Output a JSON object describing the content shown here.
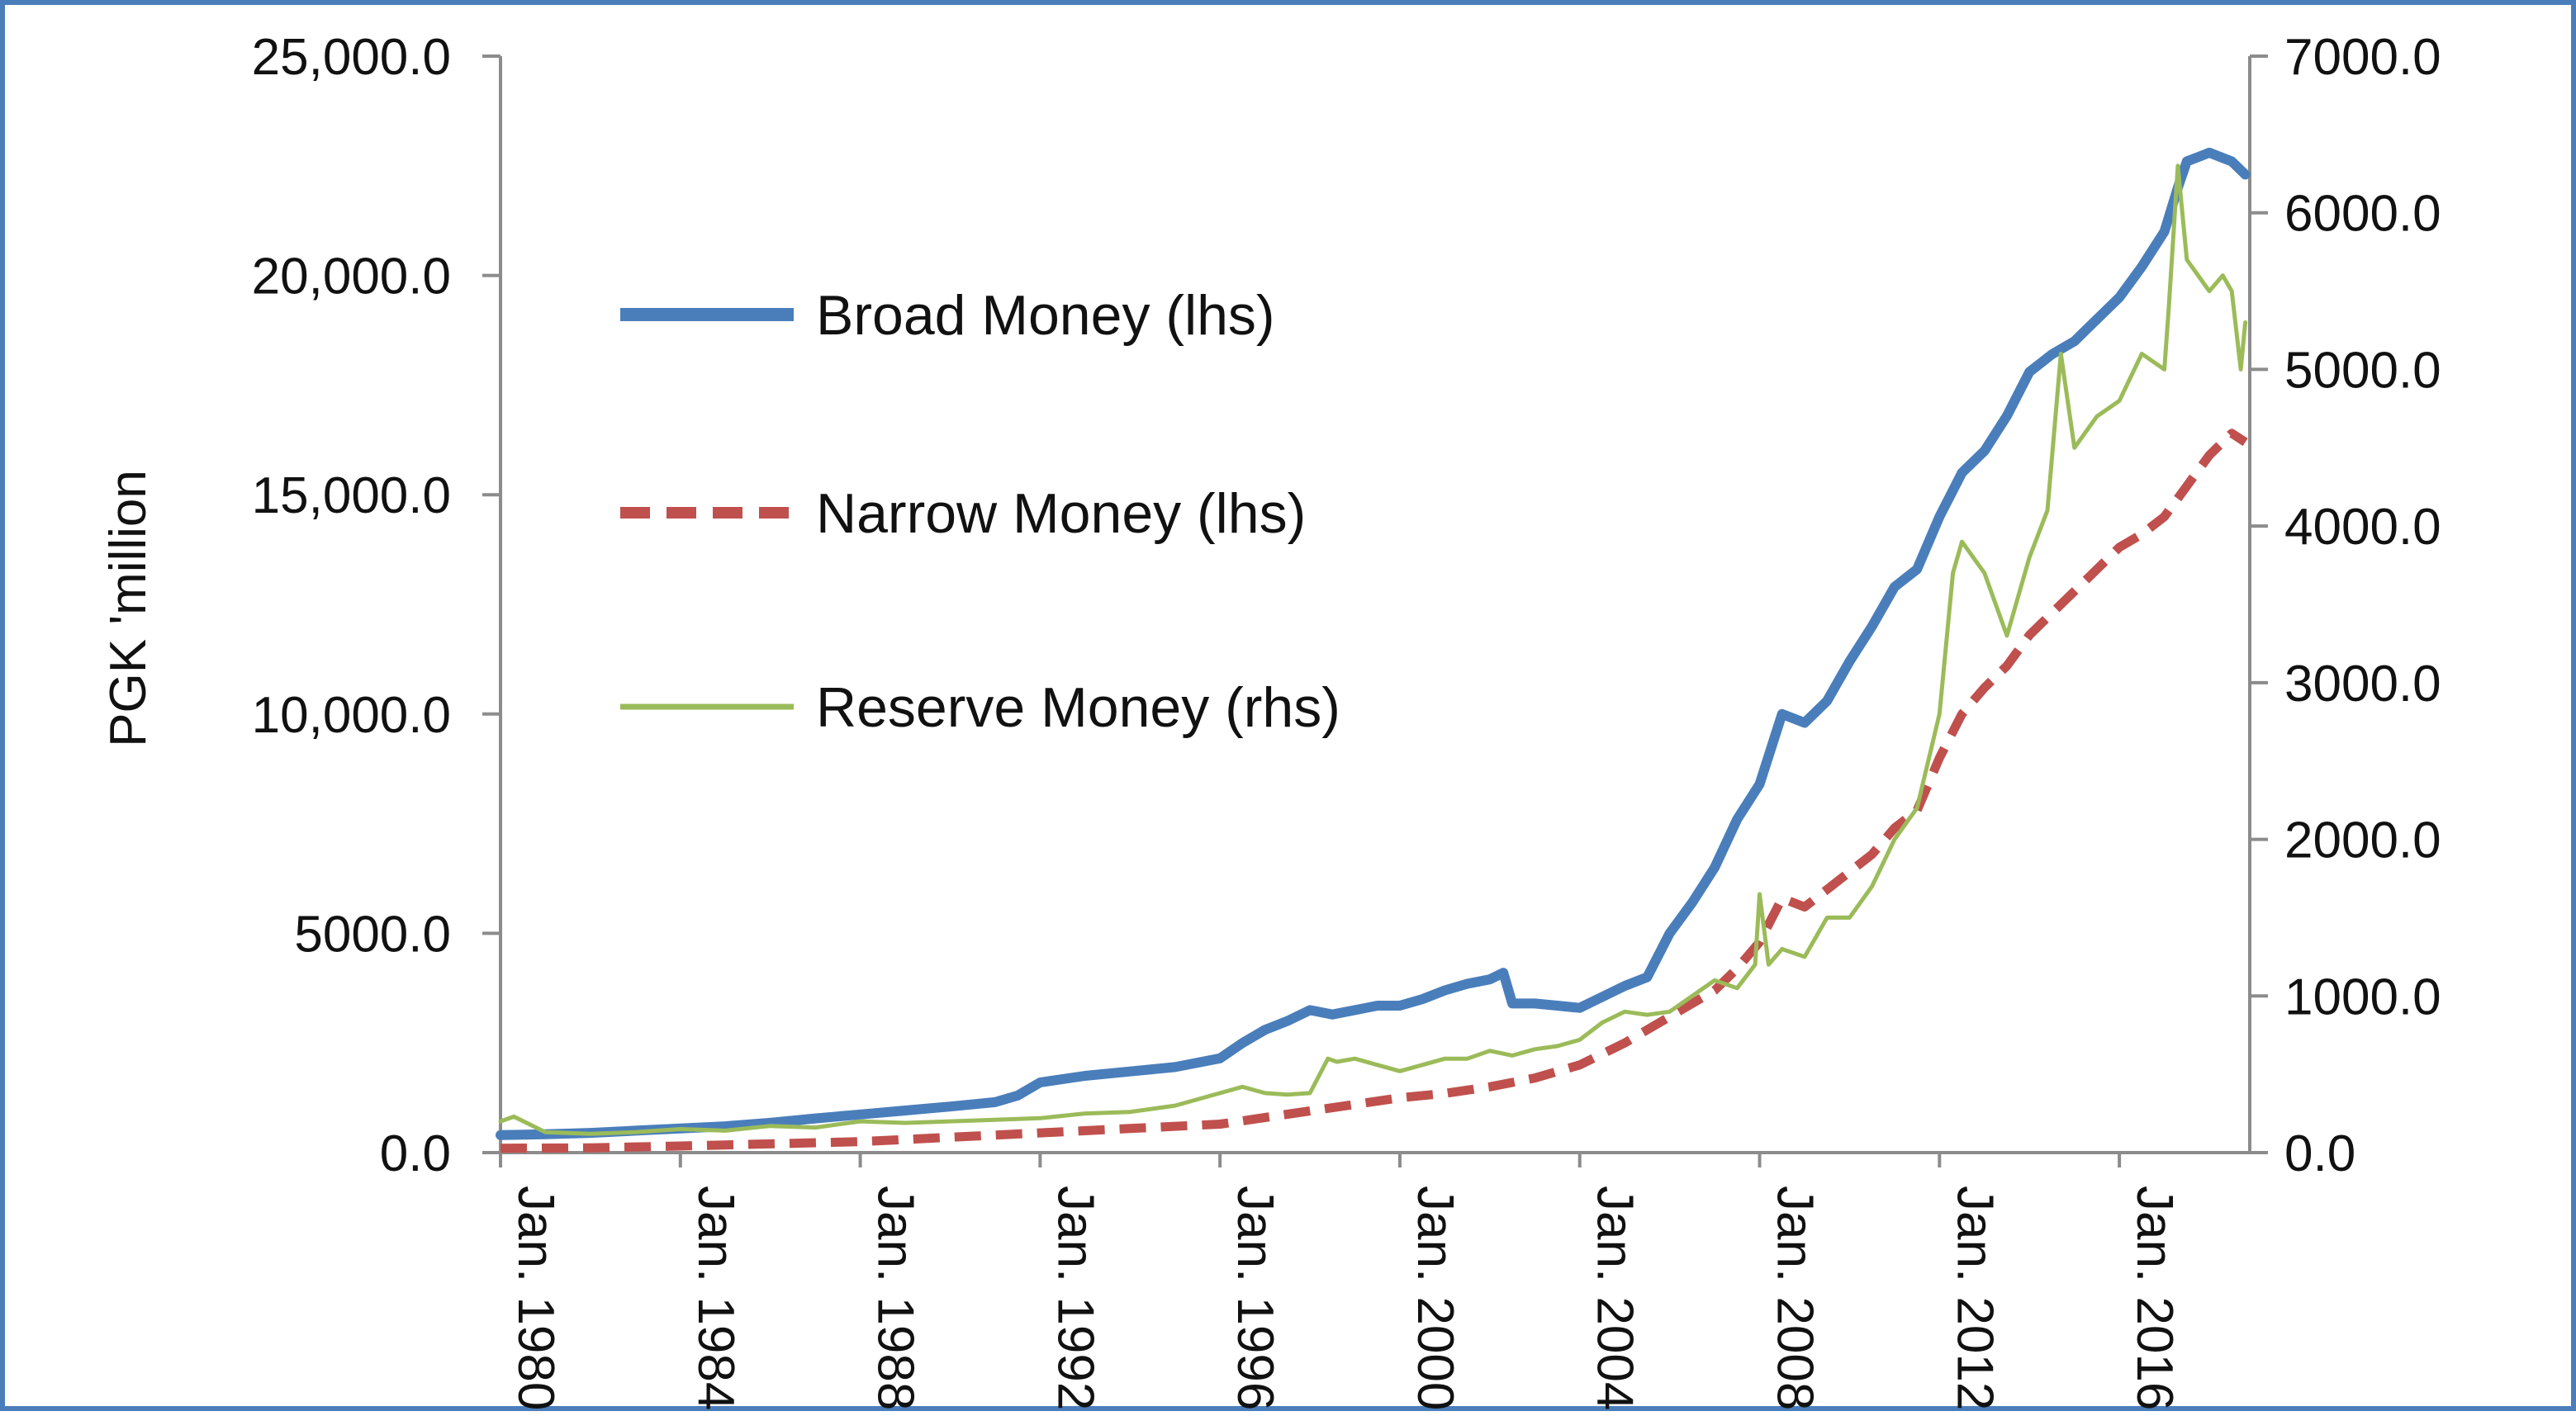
{
  "chart_data": {
    "type": "line",
    "title": "",
    "xlabel": "",
    "ylabel": "PGK 'million",
    "y2label": "",
    "x_range": [
      1980,
      2018.9
    ],
    "ylim": [
      0,
      25000
    ],
    "y2lim": [
      0,
      7000
    ],
    "x_ticks": [
      1980,
      1984,
      1988,
      1992,
      1996,
      2000,
      2004,
      2008,
      2012,
      2016
    ],
    "x_tick_labels": [
      "Jan. 1980",
      "Jan. 1984",
      "Jan. 1988",
      "Jan. 1992",
      "Jan. 1996",
      "Jan. 2000",
      "Jan. 2004",
      "Jan. 2008",
      "Jan. 2012",
      "Jan. 2016"
    ],
    "y_ticks": [
      0,
      5000,
      10000,
      15000,
      20000,
      25000
    ],
    "y_tick_labels": [
      "0.0",
      "5000.0",
      "10,000.0",
      "15,000.0",
      "20,000.0",
      "25,000.0"
    ],
    "y2_ticks": [
      0,
      1000,
      2000,
      3000,
      4000,
      5000,
      6000,
      7000
    ],
    "y2_tick_labels": [
      "0.0",
      "1000.0",
      "2000.0",
      "3000.0",
      "4000.0",
      "5000.0",
      "6000.0",
      "7000.0"
    ],
    "grid": false,
    "legend_position": "upper-left inside plot",
    "series": [
      {
        "name": "Broad Money (lhs)",
        "axis": "left",
        "color": "#4a7ebb",
        "style": "solid-thick",
        "x": [
          1980,
          1981,
          1982,
          1983,
          1984,
          1985,
          1986,
          1987,
          1988,
          1989,
          1990,
          1991,
          1991.5,
          1992,
          1993,
          1994,
          1995,
          1996,
          1996.5,
          1997,
          1997.5,
          1998,
          1998.5,
          1999,
          1999.5,
          2000,
          2000.5,
          2001,
          2001.5,
          2002,
          2002.3,
          2002.5,
          2003,
          2003.5,
          2004,
          2004.5,
          2005,
          2005.5,
          2006,
          2006.5,
          2007,
          2007.5,
          2008,
          2008.5,
          2009,
          2009.5,
          2010,
          2010.5,
          2011,
          2011.5,
          2012,
          2012.5,
          2013,
          2013.5,
          2014,
          2014.5,
          2015,
          2015.5,
          2016,
          2016.5,
          2017,
          2017.3,
          2017.5,
          2018,
          2018.5,
          2018.8
        ],
        "values": [
          400,
          420,
          450,
          500,
          550,
          600,
          680,
          780,
          870,
          960,
          1050,
          1150,
          1300,
          1600,
          1750,
          1850,
          1950,
          2150,
          2500,
          2800,
          3000,
          3250,
          3150,
          3250,
          3350,
          3350,
          3500,
          3700,
          3850,
          3950,
          4100,
          3400,
          3400,
          3350,
          3300,
          3550,
          3800,
          4000,
          5000,
          5700,
          6500,
          7600,
          8400,
          10000,
          9800,
          10300,
          11200,
          12000,
          12900,
          13300,
          14500,
          15500,
          16000,
          16800,
          17800,
          18200,
          18500,
          19000,
          19500,
          20200,
          21000,
          22000,
          22600,
          22800,
          22600,
          22300
        ]
      },
      {
        "name": "Narrow Money (lhs)",
        "axis": "left",
        "color": "#c0504d",
        "style": "dashed",
        "x": [
          1980,
          1982,
          1984,
          1986,
          1988,
          1990,
          1992,
          1994,
          1996,
          1997,
          1998,
          1999,
          2000,
          2001,
          2002,
          2003,
          2004,
          2005,
          2006,
          2007,
          2007.5,
          2008,
          2008.5,
          2009,
          2009.5,
          2010,
          2010.5,
          2011,
          2011.5,
          2012,
          2012.5,
          2013,
          2013.5,
          2014,
          2014.5,
          2015,
          2015.5,
          2016,
          2016.5,
          2017,
          2017.5,
          2018,
          2018.5,
          2018.8
        ],
        "values": [
          100,
          110,
          150,
          200,
          250,
          350,
          450,
          550,
          650,
          800,
          950,
          1100,
          1250,
          1350,
          1500,
          1700,
          2000,
          2500,
          3100,
          3700,
          4200,
          4800,
          5800,
          5600,
          6000,
          6400,
          6800,
          7400,
          7800,
          9000,
          10000,
          10600,
          11100,
          11800,
          12300,
          12800,
          13300,
          13800,
          14100,
          14500,
          15200,
          15900,
          16400,
          16200
        ]
      },
      {
        "name": "Reserve Money (rhs)",
        "axis": "right",
        "color": "#9bbb59",
        "style": "solid-thin",
        "x": [
          1980,
          1980.3,
          1981,
          1982,
          1983,
          1984,
          1985,
          1986,
          1987,
          1988,
          1989,
          1990,
          1991,
          1992,
          1993,
          1994,
          1995,
          1996,
          1996.5,
          1997,
          1997.5,
          1998,
          1998.4,
          1998.6,
          1999,
          1999.5,
          2000,
          2000.5,
          2001,
          2001.5,
          2002,
          2002.5,
          2003,
          2003.5,
          2004,
          2004.5,
          2005,
          2005.5,
          2006,
          2006.5,
          2007,
          2007.5,
          2007.9,
          2008,
          2008.2,
          2008.5,
          2009,
          2009.5,
          2010,
          2010.5,
          2011,
          2011.5,
          2012,
          2012.3,
          2012.5,
          2013,
          2013.5,
          2014,
          2014.4,
          2014.7,
          2015,
          2015.5,
          2016,
          2016.5,
          2017,
          2017.1,
          2017.3,
          2017.5,
          2018,
          2018.3,
          2018.5,
          2018.7,
          2018.8
        ],
        "values": [
          200,
          230,
          130,
          120,
          130,
          150,
          140,
          170,
          160,
          200,
          190,
          200,
          210,
          220,
          250,
          260,
          300,
          380,
          420,
          380,
          370,
          380,
          600,
          580,
          600,
          560,
          520,
          560,
          600,
          600,
          650,
          620,
          660,
          680,
          720,
          830,
          900,
          880,
          900,
          1000,
          1100,
          1050,
          1200,
          1650,
          1200,
          1300,
          1250,
          1500,
          1500,
          1700,
          2000,
          2200,
          2800,
          3700,
          3900,
          3700,
          3300,
          3800,
          4100,
          5100,
          4500,
          4700,
          4800,
          5100,
          5000,
          5400,
          6300,
          5700,
          5500,
          5600,
          5500,
          5000,
          5300
        ]
      }
    ]
  }
}
